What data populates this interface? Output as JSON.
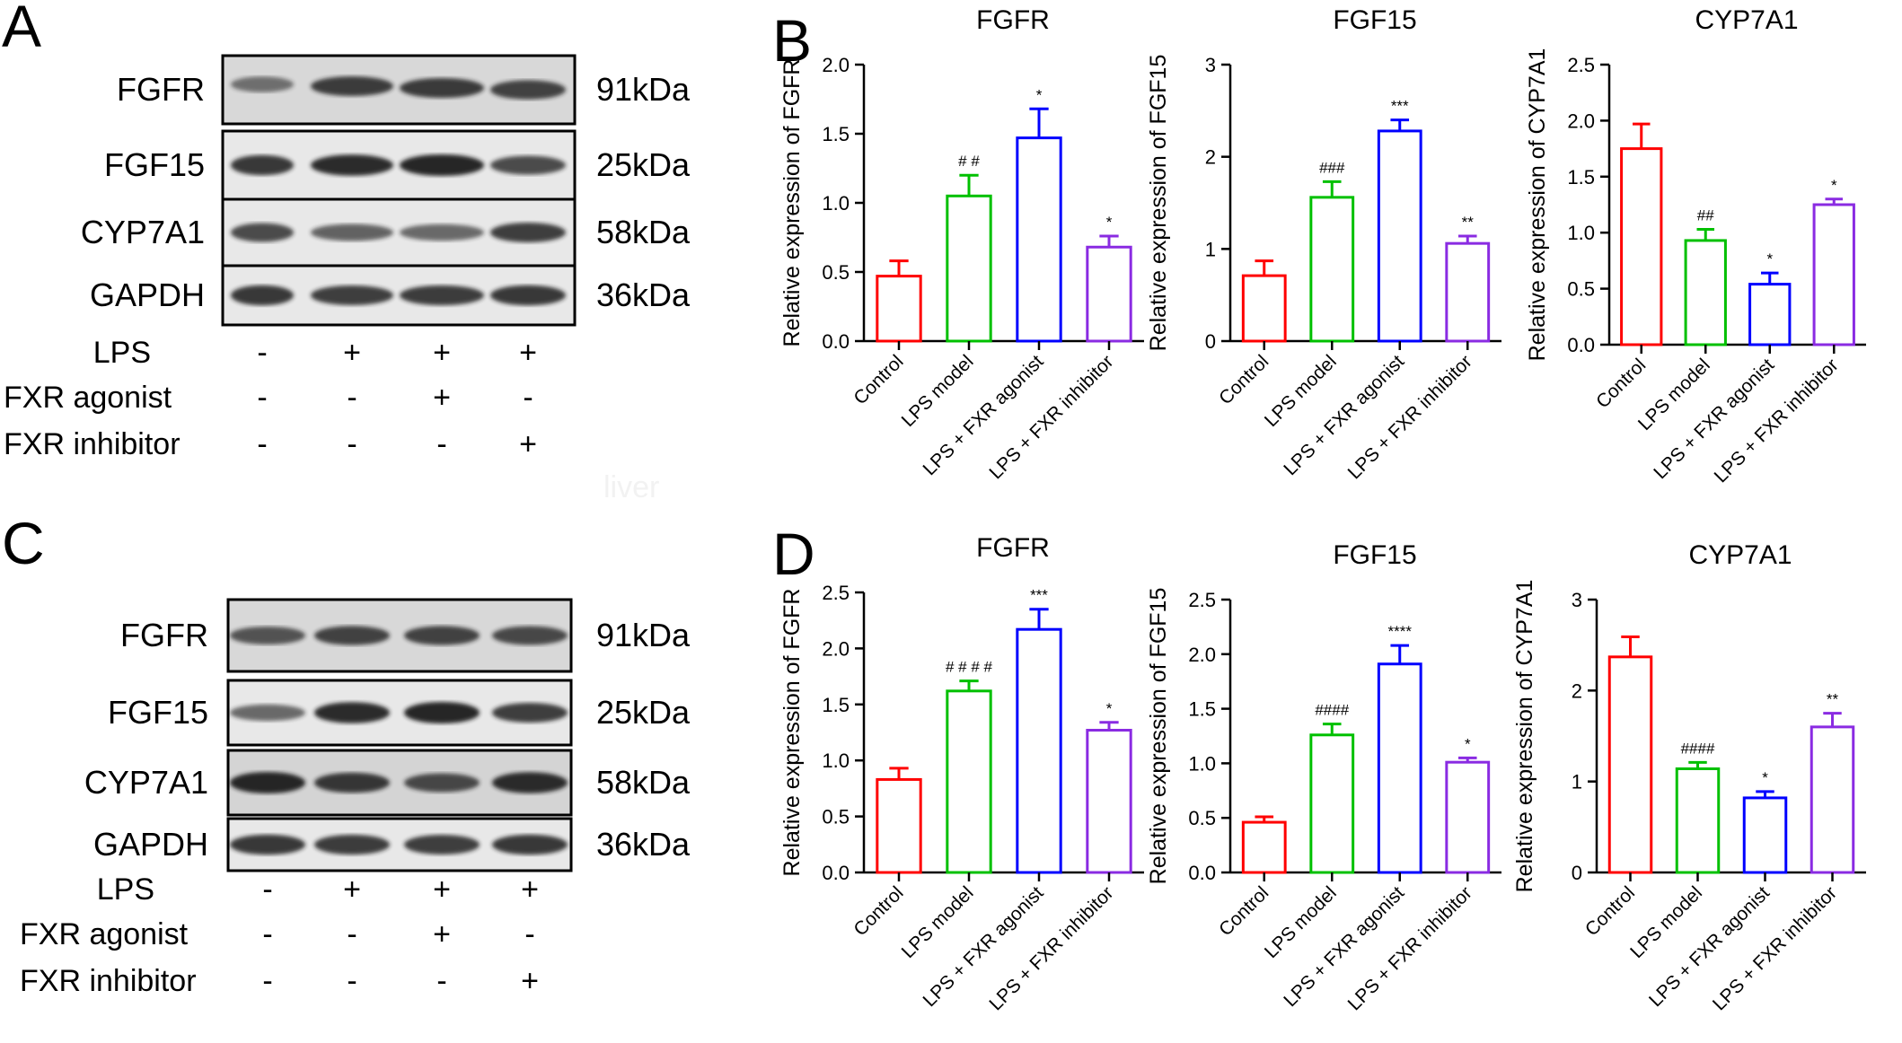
{
  "figure": {
    "watermark": "liver"
  },
  "panels": {
    "A": {
      "letter": "A",
      "bands": [
        {
          "protein": "FGFR",
          "size": "91kDa"
        },
        {
          "protein": "FGF15",
          "size": "25kDa"
        },
        {
          "protein": "CYP7A1",
          "size": "58kDa"
        },
        {
          "protein": "GAPDH",
          "size": "36kDa"
        }
      ],
      "treatments": [
        {
          "label": "LPS",
          "signs": [
            "-",
            "+",
            "+",
            "+"
          ]
        },
        {
          "label": "FXR agonist",
          "signs": [
            "-",
            "-",
            "+",
            "-"
          ]
        },
        {
          "label": "FXR inhibitor",
          "signs": [
            "-",
            "-",
            "-",
            "+"
          ]
        }
      ]
    },
    "B": {
      "letter": "B"
    },
    "C": {
      "letter": "C",
      "bands": [
        {
          "protein": "FGFR",
          "size": "91kDa"
        },
        {
          "protein": "FGF15",
          "size": "25kDa"
        },
        {
          "protein": "CYP7A1",
          "size": "58kDa"
        },
        {
          "protein": "GAPDH",
          "size": "36kDa"
        }
      ],
      "treatments": [
        {
          "label": "LPS",
          "signs": [
            "-",
            "+",
            "+",
            "+"
          ]
        },
        {
          "label": "FXR agonist",
          "signs": [
            "-",
            "-",
            "+",
            "-"
          ]
        },
        {
          "label": "FXR inhibitor",
          "signs": [
            "-",
            "-",
            "-",
            "+"
          ]
        }
      ]
    },
    "D": {
      "letter": "D"
    }
  },
  "colors": {
    "Control": "#ff0000",
    "LPS model": "#00c000",
    "LPS + FXR agonist": "#0000ff",
    "LPS + FXR inhibitor": "#8a2be2"
  },
  "chart_data": [
    {
      "panel": "B",
      "type": "bar",
      "title": "FGFR",
      "ylabel": "Relative expression of FGFR",
      "categories": [
        "Control",
        "LPS model",
        "LPS + FXR agonist",
        "LPS + FXR inhibitor"
      ],
      "values": [
        0.47,
        1.05,
        1.47,
        0.68
      ],
      "errors": [
        0.11,
        0.15,
        0.21,
        0.08
      ],
      "annotations": [
        "",
        "# #",
        "*",
        "*"
      ],
      "ylim": [
        0,
        2.0
      ],
      "yticks": [
        "0.0",
        "0.5",
        "1.0",
        "1.5",
        "2.0"
      ]
    },
    {
      "panel": "B",
      "type": "bar",
      "title": "FGF15",
      "ylabel": "Relative expression of FGF15",
      "categories": [
        "Control",
        "LPS model",
        "LPS + FXR agonist",
        "LPS + FXR inhibitor"
      ],
      "values": [
        0.71,
        1.56,
        2.28,
        1.06
      ],
      "errors": [
        0.16,
        0.17,
        0.12,
        0.08
      ],
      "annotations": [
        "",
        "###",
        "***",
        "**"
      ],
      "ylim": [
        0,
        3
      ],
      "yticks": [
        "0",
        "1",
        "2",
        "3"
      ]
    },
    {
      "panel": "B",
      "type": "bar",
      "title": "CYP7A1",
      "ylabel": "Relative expression of CYP7A1",
      "categories": [
        "Control",
        "LPS model",
        "LPS + FXR agonist",
        "LPS + FXR inhibitor"
      ],
      "values": [
        1.75,
        0.93,
        0.54,
        1.25
      ],
      "errors": [
        0.22,
        0.1,
        0.1,
        0.05
      ],
      "annotations": [
        "",
        "##",
        "*",
        "*"
      ],
      "ylim": [
        0,
        2.5
      ],
      "yticks": [
        "0.0",
        "0.5",
        "1.0",
        "1.5",
        "2.0",
        "2.5"
      ]
    },
    {
      "panel": "D",
      "type": "bar",
      "title": "FGFR",
      "ylabel": "Relative expression of FGFR",
      "categories": [
        "Control",
        "LPS model",
        "LPS + FXR agonist",
        "LPS + FXR inhibitor"
      ],
      "values": [
        0.83,
        1.62,
        2.17,
        1.27
      ],
      "errors": [
        0.1,
        0.09,
        0.18,
        0.07
      ],
      "annotations": [
        "",
        "# # # #",
        "***",
        "*"
      ],
      "ylim": [
        0,
        2.5
      ],
      "yticks": [
        "0.0",
        "0.5",
        "1.0",
        "1.5",
        "2.0",
        "2.5"
      ]
    },
    {
      "panel": "D",
      "type": "bar",
      "title": "FGF15",
      "ylabel": "Relative expression of FGF15",
      "categories": [
        "Control",
        "LPS model",
        "LPS + FXR agonist",
        "LPS + FXR inhibitor"
      ],
      "values": [
        0.46,
        1.26,
        1.91,
        1.01
      ],
      "errors": [
        0.05,
        0.1,
        0.17,
        0.04
      ],
      "annotations": [
        "",
        "####",
        "****",
        "*"
      ],
      "ylim": [
        0,
        2.5
      ],
      "yticks": [
        "0.0",
        "0.5",
        "1.0",
        "1.5",
        "2.0",
        "2.5"
      ]
    },
    {
      "panel": "D",
      "type": "bar",
      "title": "CYP7A1",
      "ylabel": "Relative expression of CYP7A1",
      "categories": [
        "Control",
        "LPS model",
        "LPS + FXR agonist",
        "LPS + FXR inhibitor"
      ],
      "values": [
        2.37,
        1.14,
        0.82,
        1.6
      ],
      "errors": [
        0.22,
        0.07,
        0.07,
        0.15
      ],
      "annotations": [
        "",
        "####",
        "*",
        "**"
      ],
      "ylim": [
        0,
        3
      ],
      "yticks": [
        "0",
        "1",
        "2",
        "3"
      ]
    }
  ]
}
